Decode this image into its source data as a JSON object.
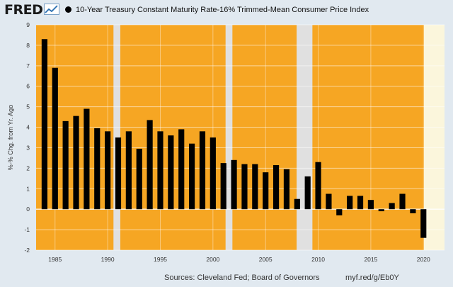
{
  "header": {
    "logo": "FRED",
    "series_label": "10-Year Treasury Constant Maturity Rate-16% Trimmed-Mean Consumer Price Index"
  },
  "footer": {
    "sources": "Sources: Cleveland Fed; Board of Governors",
    "link": "myf.red/g/Eb0Y"
  },
  "colors": {
    "expansion": "#f6a623",
    "recession": "#e0e0e0",
    "highlight": "#fbf6dc",
    "bar": "#000000",
    "background": "#e1e9f0"
  },
  "chart_data": {
    "type": "bar",
    "title": "10-Year Treasury Constant Maturity Rate-16% Trimmed-Mean Consumer Price Index",
    "xlabel": "",
    "ylabel": "%-% Chg. from Yr. Ago",
    "ylim": [
      -2,
      9
    ],
    "yticks": [
      -2,
      -1,
      0,
      1,
      2,
      3,
      4,
      5,
      6,
      7,
      8,
      9
    ],
    "xlim": [
      1983.2,
      2022.0
    ],
    "xticks": [
      1985,
      1990,
      1995,
      2000,
      2005,
      2010,
      2015,
      2020
    ],
    "grid": true,
    "series": [
      {
        "name": "10-Year Treasury Constant Maturity Rate-16% Trimmed-Mean Consumer Price Index",
        "x": [
          1984,
          1985,
          1986,
          1987,
          1988,
          1989,
          1990,
          1991,
          1992,
          1993,
          1994,
          1995,
          1996,
          1997,
          1998,
          1999,
          2000,
          2001,
          2002,
          2003,
          2004,
          2005,
          2006,
          2007,
          2008,
          2009,
          2010,
          2011,
          2012,
          2013,
          2014,
          2015,
          2016,
          2017,
          2018,
          2019,
          2020
        ],
        "values": [
          8.3,
          6.9,
          4.3,
          4.55,
          4.9,
          3.95,
          3.8,
          3.5,
          3.8,
          2.95,
          4.35,
          3.8,
          3.6,
          3.9,
          3.2,
          3.8,
          3.5,
          2.25,
          2.4,
          2.2,
          2.2,
          1.8,
          2.15,
          1.95,
          0.5,
          1.6,
          2.3,
          0.75,
          -0.3,
          0.65,
          0.65,
          0.45,
          -0.1,
          0.3,
          0.75,
          -0.2,
          -1.4
        ]
      }
    ],
    "shaded_periods": [
      {
        "kind": "recession",
        "start": 1990.55,
        "end": 1991.2
      },
      {
        "kind": "recession",
        "start": 2001.2,
        "end": 2001.85
      },
      {
        "kind": "recession",
        "start": 2007.95,
        "end": 2009.45
      },
      {
        "kind": "highlight",
        "start": 2020.05,
        "end": 2022.0
      }
    ]
  }
}
